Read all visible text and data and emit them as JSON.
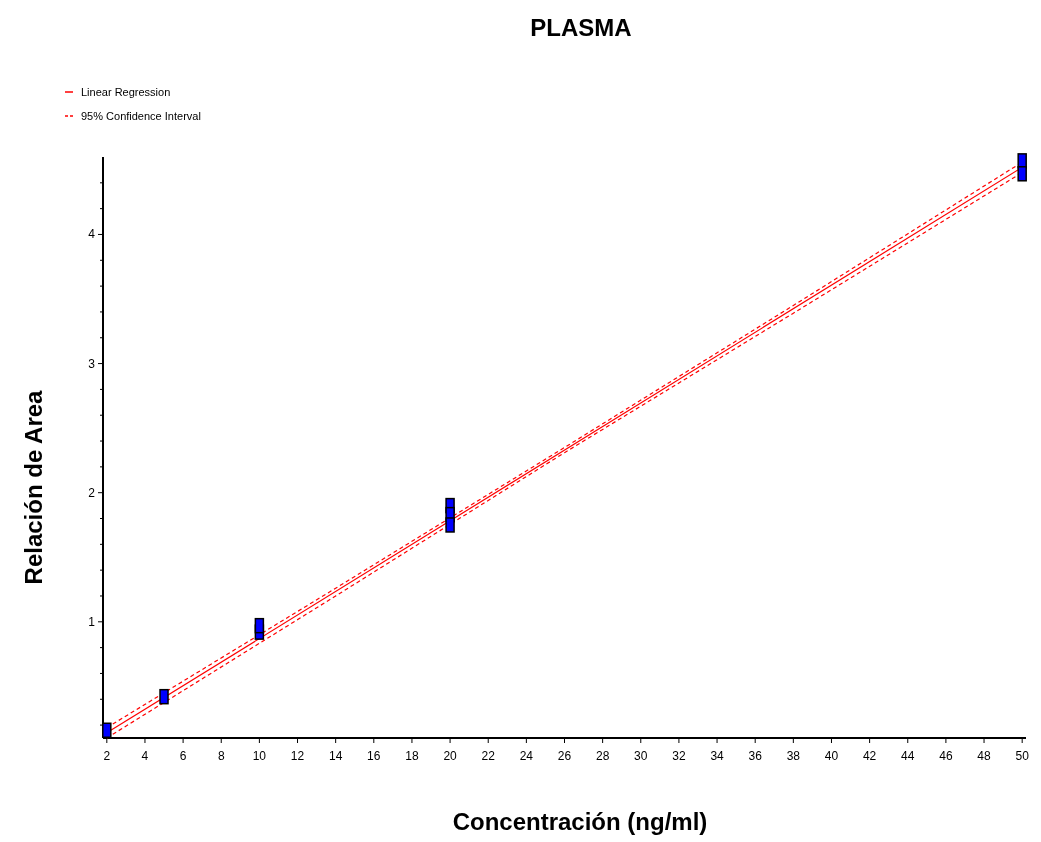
{
  "chart_data": {
    "type": "scatter",
    "title": "PLASMA",
    "xlabel": "Concentración (ng/ml)",
    "ylabel": "Relación de Area",
    "xlim": [
      1.8,
      50.2
    ],
    "ylim": [
      0.1,
      4.6
    ],
    "xticks": [
      2,
      4,
      6,
      8,
      10,
      12,
      14,
      16,
      18,
      20,
      22,
      24,
      26,
      28,
      30,
      32,
      34,
      36,
      38,
      40,
      42,
      44,
      46,
      48,
      50
    ],
    "yticks": [
      {
        "value": 0.2,
        "label": null
      },
      {
        "value": 0.4,
        "label": null
      },
      {
        "value": 0.6,
        "label": null
      },
      {
        "value": 0.8,
        "label": null
      },
      1,
      {
        "value": 1.2,
        "label": null
      },
      {
        "value": 1.4,
        "label": null
      },
      {
        "value": 1.6,
        "label": null
      },
      {
        "value": 1.8,
        "label": null
      },
      2,
      {
        "value": 2.2,
        "label": null
      },
      {
        "value": 2.4,
        "label": null
      },
      {
        "value": 2.6,
        "label": null
      },
      {
        "value": 2.8,
        "label": null
      },
      3,
      {
        "value": 3.2,
        "label": null
      },
      {
        "value": 3.4,
        "label": null
      },
      {
        "value": 3.6,
        "label": null
      },
      {
        "value": 3.8,
        "label": null
      },
      4,
      {
        "value": 4.2,
        "label": null
      },
      {
        "value": 4.4,
        "label": null
      }
    ],
    "grid": false,
    "legend": "top left",
    "series": [
      {
        "marker": "square",
        "color": "#0000ff",
        "x": [
          2,
          5,
          10,
          10,
          20,
          20,
          20,
          50,
          50
        ],
        "values": [
          0.16,
          0.42,
          0.92,
          0.97,
          1.9,
          1.83,
          1.75,
          4.57,
          4.47
        ]
      },
      {
        "type": "line",
        "name": "Linear Regression",
        "color": "#ff0000",
        "line_style": "solid",
        "x": [
          2,
          50
        ],
        "values": [
          0.14,
          4.52
        ]
      },
      {
        "type": "line",
        "name": "95% Confidence Interval",
        "color": "#ff0000",
        "line_style": "dashed",
        "x": [
          2,
          14,
          26,
          38,
          50
        ],
        "values": [
          0.18,
          1.26,
          2.35,
          3.45,
          4.56
        ]
      },
      {
        "type": "line",
        "color": "#ff0000",
        "line_style": "dashed",
        "x": [
          2,
          14,
          26,
          38,
          50
        ],
        "values": [
          0.1,
          1.2,
          2.31,
          3.39,
          4.48
        ]
      }
    ]
  }
}
